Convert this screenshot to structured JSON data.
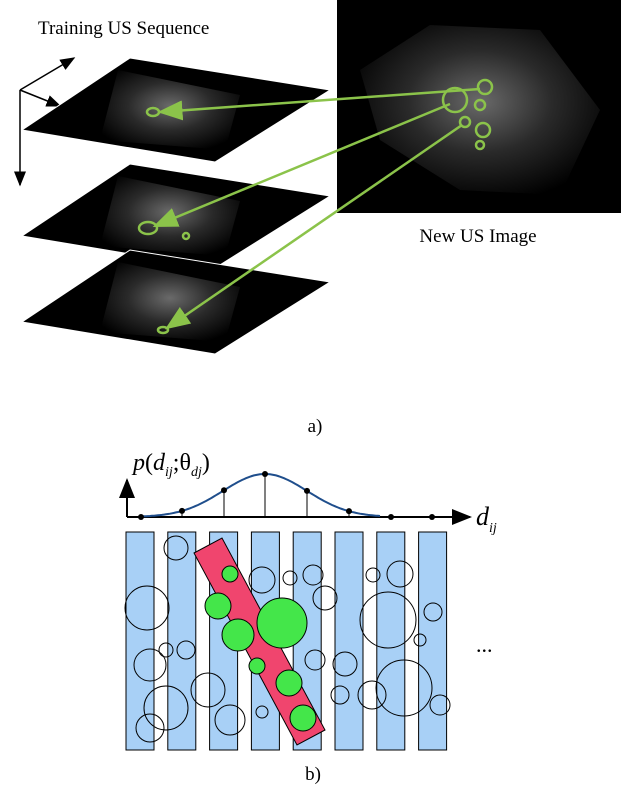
{
  "panel_a": {
    "training_label": "Training US Sequence",
    "new_image_label": "New US Image",
    "caption": "a)"
  },
  "panel_b": {
    "formula": {
      "parts": [
        "p",
        "(",
        "d",
        "ij",
        ";",
        "θ",
        "dj",
        ")"
      ]
    },
    "axis_label": {
      "base": "d",
      "sub": "ij"
    },
    "ellipsis": "...",
    "caption": "b)"
  }
}
